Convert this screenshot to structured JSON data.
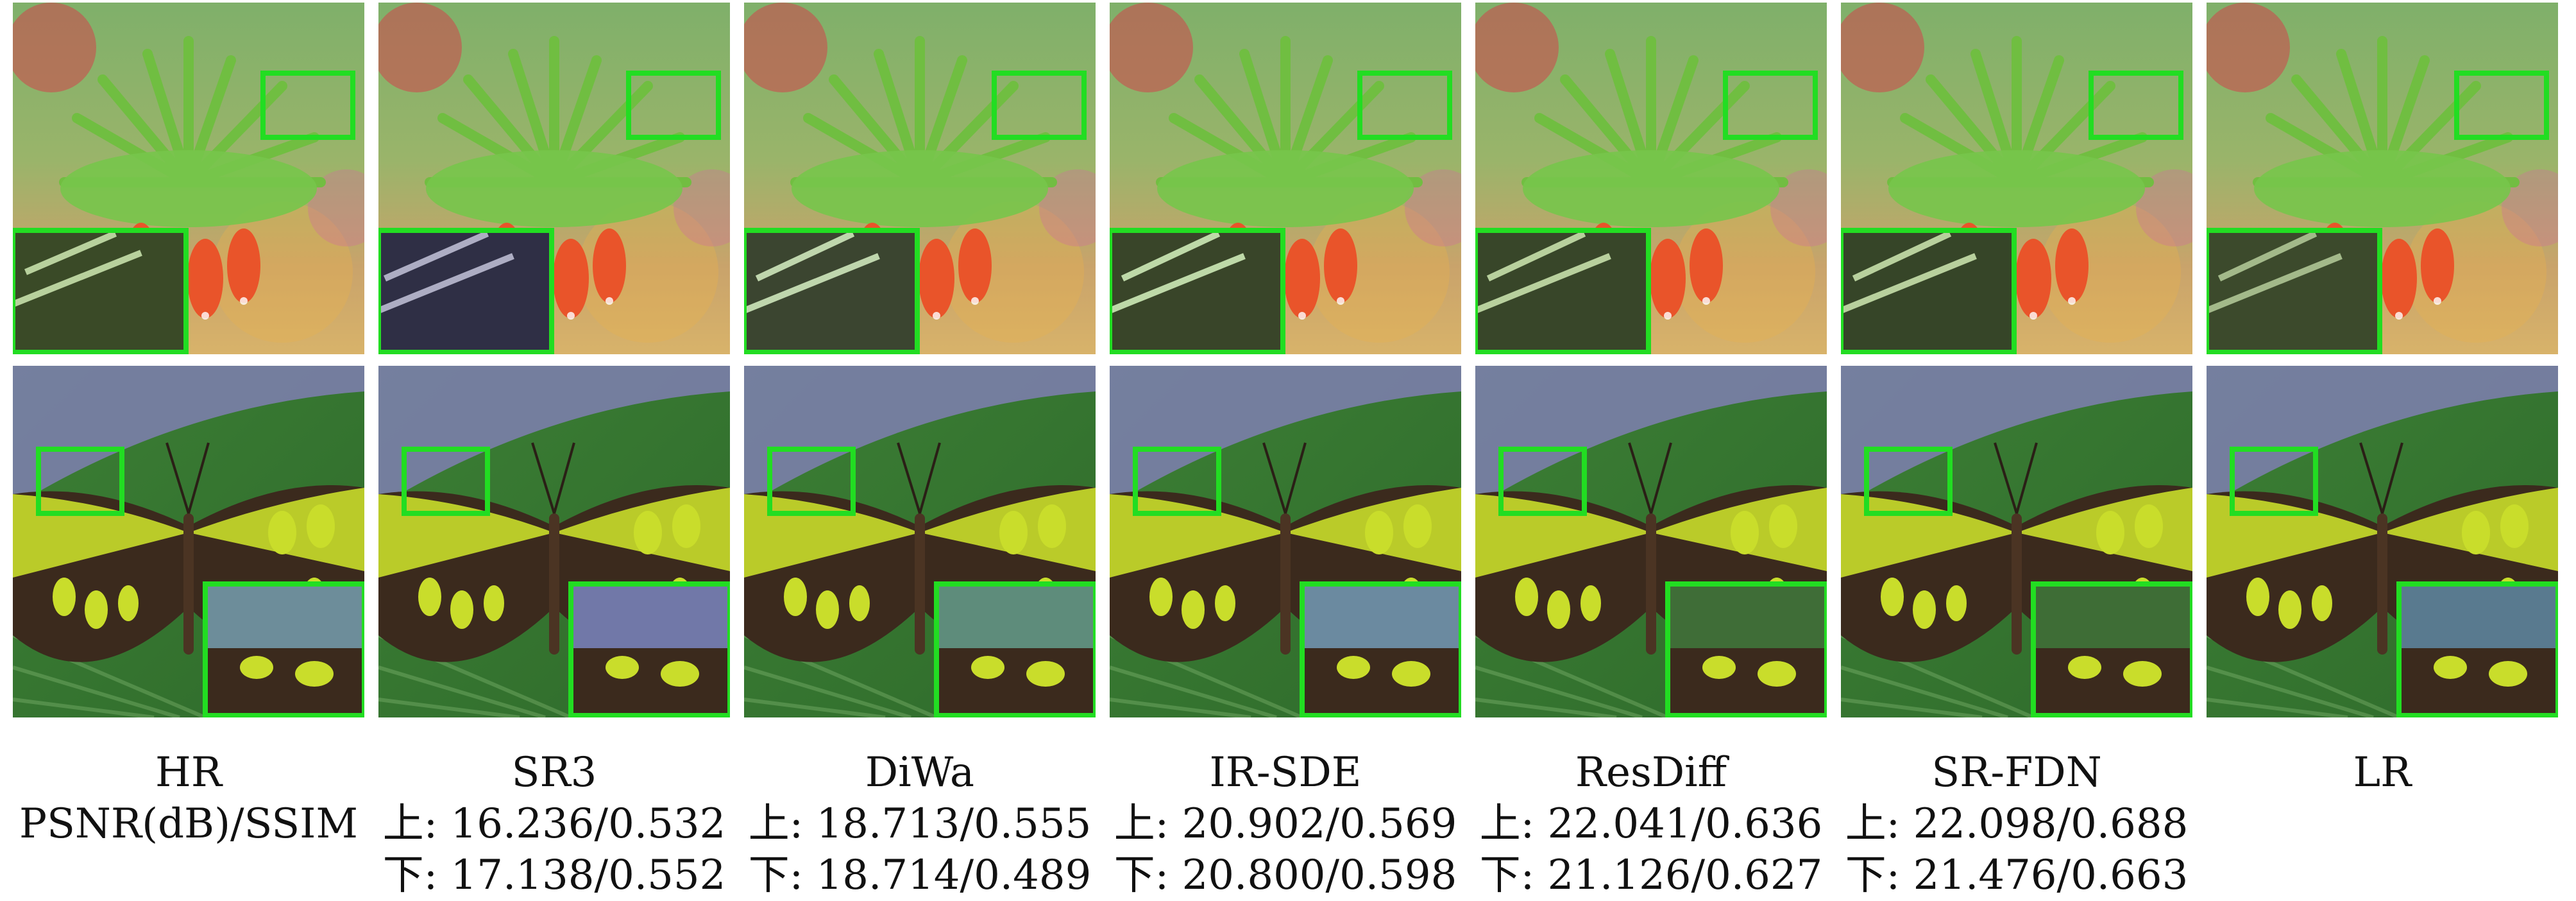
{
  "colors": {
    "highlight_box": "#22dd22",
    "caption_text": "#111111",
    "leaf_green": "#3f8f2f",
    "petal_orange": "#e9542a",
    "wing_dark": "#3b2a1d",
    "wing_spot": "#c9dd2b"
  },
  "figure": {
    "top_row_subject": "flower",
    "bottom_row_subject": "butterfly"
  },
  "columns": [
    {
      "method": "HR",
      "line2": "PSNR(dB)/SSIM",
      "line3": ""
    },
    {
      "method": "SR3",
      "line2": "上: 16.236/0.532",
      "line3": "下: 17.138/0.552"
    },
    {
      "method": "DiWa",
      "line2": "上: 18.713/0.555",
      "line3": "下: 18.714/0.489"
    },
    {
      "method": "IR-SDE",
      "line2": "上: 20.902/0.569",
      "line3": "下: 20.800/0.598"
    },
    {
      "method": "ResDiff",
      "line2": "上: 22.041/0.636",
      "line3": "下: 21.126/0.627"
    },
    {
      "method": "SR-FDN",
      "line2": "上: 22.098/0.688",
      "line3": "下: 21.476/0.663"
    },
    {
      "method": "LR",
      "line2": "",
      "line3": ""
    }
  ]
}
